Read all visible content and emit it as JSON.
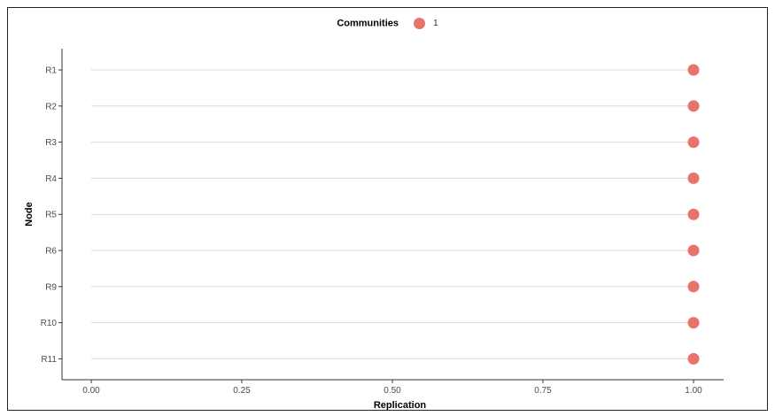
{
  "chart_data": {
    "type": "scatter",
    "xlabel": "Replication",
    "ylabel": "Node",
    "xlim": [
      0,
      1
    ],
    "x_ticks": [
      "0.00",
      "0.25",
      "0.50",
      "0.75",
      "1.00"
    ],
    "x_tick_values": [
      0,
      0.25,
      0.5,
      0.75,
      1
    ],
    "categories": [
      "R1",
      "R2",
      "R3",
      "R4",
      "R5",
      "R6",
      "R9",
      "R10",
      "R11"
    ],
    "series": [
      {
        "name": "1",
        "values": [
          1,
          1,
          1,
          1,
          1,
          1,
          1,
          1,
          1
        ]
      }
    ],
    "legend": {
      "title": "Communities",
      "position": "top"
    },
    "grid": "horizontal"
  },
  "colors": {
    "point": "#E8736A",
    "gridline": "#D9D9D9",
    "axis": "#333333"
  }
}
